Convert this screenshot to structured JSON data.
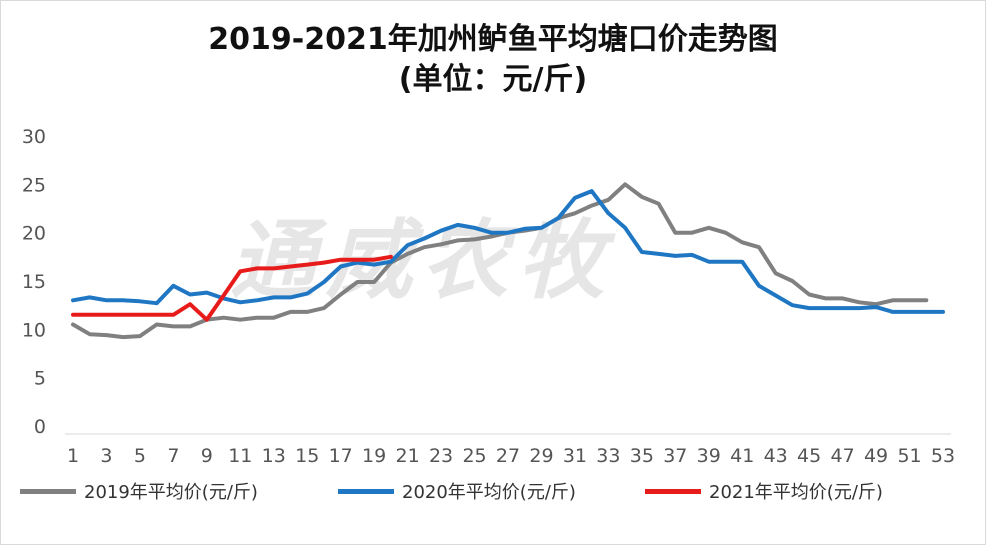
{
  "title_line1": "2019-2021年加州鲈鱼平均塘口价走势图",
  "title_line2": "(单位：元/斤)",
  "watermark": "通威农牧",
  "chart_data": {
    "type": "line",
    "title": "2019-2021年加州鲈鱼平均塘口价走势图 (单位：元/斤)",
    "xlabel": "",
    "ylabel": "",
    "ylim": [
      0,
      30
    ],
    "yticks": [
      0,
      5,
      10,
      15,
      20,
      25,
      30
    ],
    "xticks": [
      1,
      3,
      5,
      7,
      9,
      11,
      13,
      15,
      17,
      19,
      21,
      23,
      25,
      27,
      29,
      31,
      33,
      35,
      37,
      39,
      41,
      43,
      45,
      47,
      49,
      51,
      53
    ],
    "xlim": [
      1,
      53
    ],
    "grid": false,
    "legend": "bottom",
    "series": [
      {
        "name": "2019年平均价(元/斤)",
        "color": "#808080",
        "x": [
          1,
          2,
          3,
          4,
          5,
          6,
          7,
          8,
          9,
          10,
          11,
          12,
          13,
          14,
          15,
          16,
          17,
          18,
          19,
          20,
          21,
          22,
          23,
          24,
          25,
          26,
          27,
          28,
          29,
          30,
          31,
          32,
          33,
          34,
          35,
          36,
          37,
          38,
          39,
          40,
          41,
          42,
          43,
          44,
          45,
          46,
          47,
          48,
          49,
          50,
          51,
          52
        ],
        "values": [
          10.5,
          9.5,
          9.4,
          9.2,
          9.3,
          10.5,
          10.3,
          10.3,
          11.0,
          11.2,
          11.0,
          11.2,
          11.2,
          11.8,
          11.8,
          12.2,
          13.6,
          14.9,
          14.9,
          16.9,
          17.8,
          18.5,
          18.8,
          19.2,
          19.3,
          19.6,
          20.0,
          20.2,
          20.5,
          21.5,
          22.0,
          22.8,
          23.4,
          25.0,
          23.7,
          23.0,
          20.0,
          20.0,
          20.5,
          20.0,
          19.0,
          18.5,
          15.8,
          15.0,
          13.6,
          13.2,
          13.2,
          12.8,
          12.6,
          13.0,
          13.0,
          13.0
        ]
      },
      {
        "name": "2020年平均价(元/斤)",
        "color": "#1f77c4",
        "x": [
          1,
          2,
          3,
          4,
          5,
          6,
          7,
          8,
          9,
          10,
          11,
          12,
          13,
          14,
          15,
          16,
          17,
          18,
          19,
          20,
          21,
          22,
          23,
          24,
          25,
          26,
          27,
          28,
          29,
          30,
          31,
          32,
          33,
          34,
          35,
          36,
          37,
          38,
          39,
          40,
          41,
          42,
          43,
          44,
          45,
          46,
          47,
          48,
          49,
          50,
          51,
          52,
          53
        ],
        "values": [
          13.0,
          13.3,
          13.0,
          13.0,
          12.9,
          12.7,
          14.5,
          13.6,
          13.8,
          13.2,
          12.8,
          13.0,
          13.3,
          13.3,
          13.7,
          14.9,
          16.5,
          16.9,
          16.7,
          17.0,
          18.7,
          19.4,
          20.2,
          20.8,
          20.5,
          20.0,
          20.0,
          20.4,
          20.5,
          21.5,
          23.6,
          24.3,
          22.0,
          20.5,
          18.0,
          17.8,
          17.6,
          17.7,
          17.0,
          17.0,
          17.0,
          14.5,
          13.5,
          12.5,
          12.2,
          12.2,
          12.2,
          12.2,
          12.3,
          11.8,
          11.8,
          11.8,
          11.8
        ]
      },
      {
        "name": "2021年平均价(元/斤)",
        "color": "#e81b1b",
        "x": [
          1,
          2,
          3,
          4,
          5,
          6,
          7,
          8,
          9,
          10,
          11,
          12,
          13,
          14,
          15,
          16,
          17,
          18,
          19,
          20
        ],
        "values": [
          11.5,
          11.5,
          11.5,
          11.5,
          11.5,
          11.5,
          11.5,
          12.6,
          11.0,
          13.5,
          16.0,
          16.3,
          16.3,
          16.5,
          16.7,
          16.9,
          17.2,
          17.2,
          17.2,
          17.5
        ]
      }
    ]
  }
}
